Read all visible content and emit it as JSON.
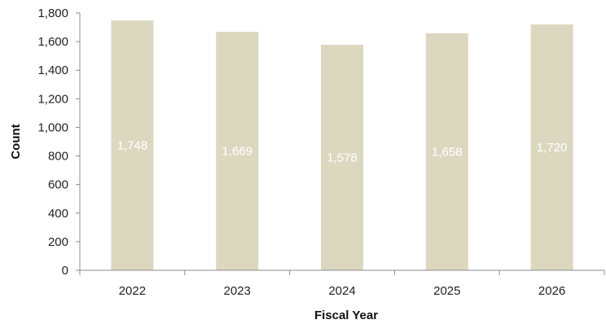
{
  "chart_data": {
    "type": "bar",
    "categories": [
      "2022",
      "2023",
      "2024",
      "2025",
      "2026"
    ],
    "values": [
      1748,
      1669,
      1578,
      1658,
      1720
    ],
    "data_labels": [
      "1,748",
      "1,669",
      "1,578",
      "1,658",
      "1,720"
    ],
    "title": "",
    "xlabel": "Fiscal Year",
    "ylabel": "Count",
    "ylim": [
      0,
      1800
    ],
    "yticks": [
      0,
      200,
      400,
      600,
      800,
      1000,
      1200,
      1400,
      1600,
      1800
    ],
    "ytick_labels": [
      "0",
      "200",
      "400",
      "600",
      "800",
      "1,000",
      "1,200",
      "1,400",
      "1,600",
      "1,800"
    ],
    "grid": false,
    "legend": "none",
    "colors": {
      "bar": "#dcd8c0",
      "axis": "#8c8c8c",
      "data_label": "#ffffff"
    }
  }
}
